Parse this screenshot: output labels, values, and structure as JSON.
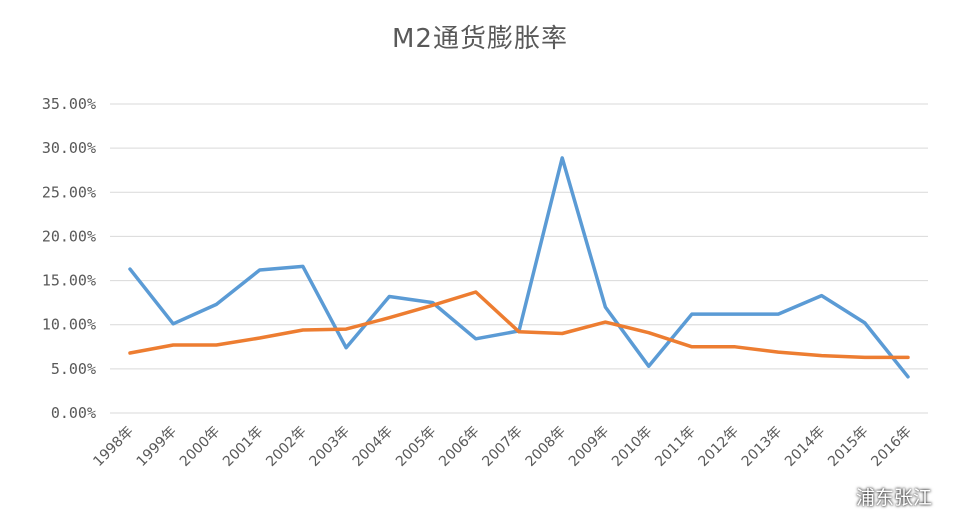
{
  "chart_data": {
    "type": "line",
    "title": "M2通货膨胀率",
    "categories": [
      "1998年",
      "1999年",
      "2000年",
      "2001年",
      "2002年",
      "2003年",
      "2004年",
      "2005年",
      "2006年",
      "2007年",
      "2008年",
      "2009年",
      "2010年",
      "2011年",
      "2012年",
      "2013年",
      "2014年",
      "2015年",
      "2016年"
    ],
    "y_tick_labels": [
      "0.00%",
      "5.00%",
      "10.00%",
      "15.00%",
      "20.00%",
      "25.00%",
      "30.00%",
      "35.00%"
    ],
    "ylim": [
      0,
      35
    ],
    "grid": true,
    "legend": "none",
    "series": [
      {
        "color": "#5B9BD5",
        "values": [
          16.3,
          10.1,
          12.3,
          16.2,
          16.6,
          7.4,
          13.2,
          12.5,
          8.4,
          9.3,
          28.9,
          12.0,
          5.3,
          11.2,
          11.2,
          11.2,
          13.3,
          10.2,
          4.1
        ]
      },
      {
        "color": "#ED7D31",
        "values": [
          6.8,
          7.7,
          7.7,
          8.5,
          9.4,
          9.5,
          10.8,
          12.2,
          13.7,
          9.2,
          9.0,
          10.3,
          9.1,
          7.5,
          7.5,
          6.9,
          6.5,
          6.3,
          6.3
        ]
      }
    ]
  },
  "watermark": {
    "text": "浦东张江",
    "icon": "wechat-bubble-icon"
  }
}
